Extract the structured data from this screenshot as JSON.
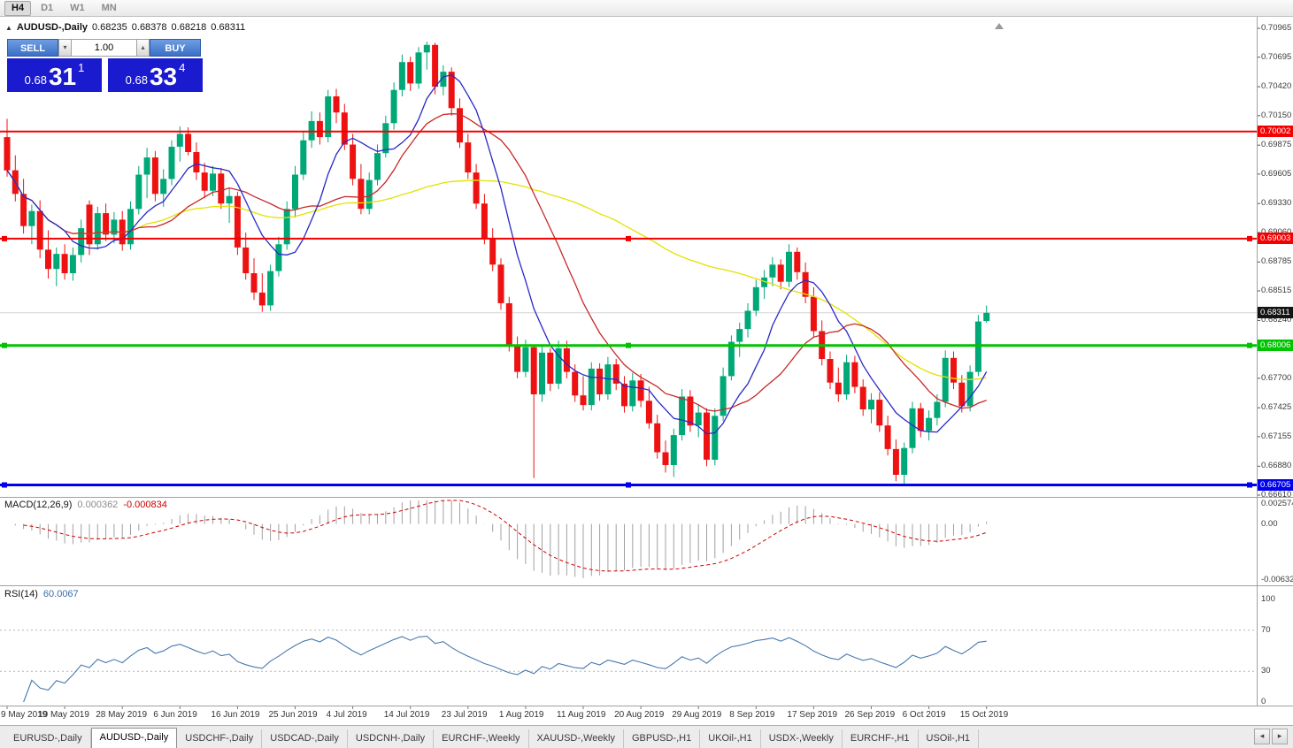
{
  "toolbar": {
    "timeframes": [
      {
        "label": "H4",
        "active": true
      },
      {
        "label": "D1",
        "active": false
      },
      {
        "label": "W1",
        "active": false
      },
      {
        "label": "MN",
        "active": false
      }
    ]
  },
  "chart_header": {
    "symbol": "AUDUSD-,Daily",
    "open": "0.68235",
    "high": "0.68378",
    "low": "0.68218",
    "close": "0.68311"
  },
  "trade_panel": {
    "sell_label": "SELL",
    "buy_label": "BUY",
    "lot": "1.00",
    "sell_price": {
      "prefix": "0.68",
      "pips": "31",
      "point": "1"
    },
    "buy_price": {
      "prefix": "0.68",
      "pips": "33",
      "point": "4"
    },
    "button_color": "#3a6fc6",
    "price_box_color": "#1a1ace"
  },
  "price_axis": [
    "0.70965",
    "0.70695",
    "0.70420",
    "0.70150",
    "0.69875",
    "0.69605",
    "0.69330",
    "0.69060",
    "0.68785",
    "0.68515",
    "0.68240",
    "0.67970",
    "0.67700",
    "0.67425",
    "0.67155",
    "0.66880",
    "0.66610"
  ],
  "lines": [
    {
      "price": 0.70002,
      "label": "0.70002",
      "color": "#f50000",
      "width": 2,
      "handles": false
    },
    {
      "price": 0.69003,
      "label": "0.69003",
      "color": "#f50000",
      "width": 2,
      "handles": true
    },
    {
      "price": 0.68006,
      "label": "0.68006",
      "color": "#00c400",
      "width": 3,
      "handles": true
    },
    {
      "price": 0.66705,
      "label": "0.66705",
      "color": "#0000f0",
      "width": 3,
      "handles": true
    }
  ],
  "current_price": {
    "value": 0.68311,
    "label": "0.68311"
  },
  "macd_panel": {
    "name": "MACD(12,26,9)",
    "value_main": "0.000362",
    "value_signal": "-0.000834",
    "axis": [
      "0.002574",
      "0.00",
      "-0.006326"
    ],
    "max": 0.002574,
    "min": -0.006326,
    "params": {
      "fast": 12,
      "slow": 26,
      "signal": 9
    }
  },
  "rsi_panel": {
    "name": "RSI(14)",
    "value": "60.0067",
    "period": 14,
    "axis": [
      "100",
      "70",
      "30",
      "0"
    ],
    "levels": [
      70,
      30
    ]
  },
  "colors": {
    "up": "#00a878",
    "down": "#ee1111",
    "ma_fast": "#2828c8",
    "ma_mid": "#c82828",
    "ma_slow": "#e2e200",
    "macd_hist": "#a0a0a0",
    "macd_signal": "#cc0000",
    "rsi_line": "#4779af",
    "grid": "#d4d4d4",
    "current_tag": "#141414"
  },
  "tabs": [
    {
      "label": "EURUSD-,Daily",
      "active": false
    },
    {
      "label": "AUDUSD-,Daily",
      "active": true
    },
    {
      "label": "USDCHF-,Daily",
      "active": false
    },
    {
      "label": "USDCAD-,Daily",
      "active": false
    },
    {
      "label": "USDCNH-,Daily",
      "active": false
    },
    {
      "label": "EURCHF-,Weekly",
      "active": false
    },
    {
      "label": "XAUUSD-,Weekly",
      "active": false
    },
    {
      "label": "GBPUSD-,H1",
      "active": false
    },
    {
      "label": "UKOil-,H1",
      "active": false
    },
    {
      "label": "USDX-,Weekly",
      "active": false
    },
    {
      "label": "EURCHF-,H1",
      "active": false
    },
    {
      "label": "USOil-,H1",
      "active": false
    }
  ],
  "chart_data": {
    "type": "candlestick",
    "title": "AUDUSD-,Daily",
    "symbol": "AUDUSD",
    "timeframe": "Daily",
    "price_range": {
      "top": 0.70965,
      "bottom": 0.6661
    },
    "label_every": 7,
    "x_labels": [
      "9 May 2019",
      "19 May 2019",
      "28 May 2019",
      "6 Jun 2019",
      "16 Jun 2019",
      "25 Jun 2019",
      "4 Jul 2019",
      "14 Jul 2019",
      "23 Jul 2019",
      "1 Aug 2019",
      "11 Aug 2019",
      "20 Aug 2019",
      "29 Aug 2019",
      "8 Sep 2019",
      "17 Sep 2019",
      "26 Sep 2019",
      "6 Oct 2019",
      "15 Oct 2019"
    ],
    "overlays": [
      {
        "name": "sma-slow",
        "period": 55,
        "color": "#e2e200"
      },
      {
        "name": "sma-mid",
        "period": 17,
        "color": "#c82828"
      },
      {
        "name": "sma-fast",
        "period": 8,
        "color": "#2828c8"
      }
    ],
    "candles": [
      [
        0.6995,
        0.7012,
        0.6958,
        0.6964
      ],
      [
        0.6964,
        0.6978,
        0.6935,
        0.6942
      ],
      [
        0.6942,
        0.6956,
        0.6905,
        0.6912
      ],
      [
        0.6912,
        0.6932,
        0.6895,
        0.6926
      ],
      [
        0.6926,
        0.6936,
        0.6882,
        0.689
      ],
      [
        0.689,
        0.6908,
        0.6863,
        0.6872
      ],
      [
        0.6872,
        0.6892,
        0.6856,
        0.6886
      ],
      [
        0.6886,
        0.6895,
        0.6862,
        0.6868
      ],
      [
        0.6868,
        0.6892,
        0.6861,
        0.6885
      ],
      [
        0.6885,
        0.6918,
        0.6878,
        0.691
      ],
      [
        0.6932,
        0.6936,
        0.6885,
        0.6895
      ],
      [
        0.6895,
        0.693,
        0.689,
        0.6924
      ],
      [
        0.6924,
        0.6933,
        0.6898,
        0.6904
      ],
      [
        0.6904,
        0.6925,
        0.6896,
        0.6918
      ],
      [
        0.6918,
        0.6926,
        0.6889,
        0.6895
      ],
      [
        0.6895,
        0.6935,
        0.689,
        0.6928
      ],
      [
        0.6928,
        0.6968,
        0.6923,
        0.696
      ],
      [
        0.696,
        0.6985,
        0.6938,
        0.6976
      ],
      [
        0.6976,
        0.6982,
        0.6935,
        0.6942
      ],
      [
        0.6942,
        0.6965,
        0.693,
        0.6956
      ],
      [
        0.6956,
        0.6992,
        0.695,
        0.6986
      ],
      [
        0.6986,
        0.7005,
        0.6972,
        0.6998
      ],
      [
        0.6998,
        0.7004,
        0.6978,
        0.6981
      ],
      [
        0.6981,
        0.699,
        0.6955,
        0.6962
      ],
      [
        0.6962,
        0.6971,
        0.6938,
        0.6945
      ],
      [
        0.6945,
        0.6968,
        0.694,
        0.6961
      ],
      [
        0.6961,
        0.6966,
        0.6928,
        0.6933
      ],
      [
        0.6933,
        0.6948,
        0.6915,
        0.694
      ],
      [
        0.694,
        0.6944,
        0.6885,
        0.6892
      ],
      [
        0.6892,
        0.6906,
        0.6862,
        0.6868
      ],
      [
        0.6868,
        0.6882,
        0.6843,
        0.685
      ],
      [
        0.685,
        0.6868,
        0.6832,
        0.6838
      ],
      [
        0.6838,
        0.6876,
        0.6833,
        0.687
      ],
      [
        0.687,
        0.6902,
        0.6865,
        0.6895
      ],
      [
        0.6895,
        0.6935,
        0.689,
        0.6928
      ],
      [
        0.6928,
        0.6968,
        0.692,
        0.696
      ],
      [
        0.696,
        0.7,
        0.6955,
        0.6992
      ],
      [
        0.6992,
        0.7019,
        0.6985,
        0.701
      ],
      [
        0.701,
        0.7018,
        0.6988,
        0.6995
      ],
      [
        0.6995,
        0.7039,
        0.699,
        0.7033
      ],
      [
        0.7033,
        0.704,
        0.7008,
        0.7018
      ],
      [
        0.7018,
        0.7026,
        0.6983,
        0.6988
      ],
      [
        0.6988,
        0.6998,
        0.695,
        0.6956
      ],
      [
        0.6956,
        0.697,
        0.6923,
        0.6928
      ],
      [
        0.6928,
        0.6962,
        0.6923,
        0.6955
      ],
      [
        0.6955,
        0.6988,
        0.695,
        0.698
      ],
      [
        0.698,
        0.7015,
        0.6976,
        0.7008
      ],
      [
        0.7008,
        0.7046,
        0.7002,
        0.7039
      ],
      [
        0.7039,
        0.7072,
        0.7033,
        0.7065
      ],
      [
        0.7065,
        0.707,
        0.7038,
        0.7045
      ],
      [
        0.7045,
        0.7079,
        0.704,
        0.7074
      ],
      [
        0.7074,
        0.7084,
        0.7058,
        0.7081
      ],
      [
        0.7081,
        0.7083,
        0.7035,
        0.7042
      ],
      [
        0.7042,
        0.7062,
        0.7034,
        0.7056
      ],
      [
        0.7056,
        0.706,
        0.7015,
        0.7022
      ],
      [
        0.7022,
        0.7031,
        0.6985,
        0.699
      ],
      [
        0.699,
        0.6998,
        0.6956,
        0.6962
      ],
      [
        0.6962,
        0.697,
        0.6928,
        0.6933
      ],
      [
        0.6933,
        0.6942,
        0.6895,
        0.69
      ],
      [
        0.69,
        0.691,
        0.687,
        0.6876
      ],
      [
        0.6876,
        0.6882,
        0.6834,
        0.684
      ],
      [
        0.684,
        0.6846,
        0.6795,
        0.6801
      ],
      [
        0.6801,
        0.6809,
        0.677,
        0.6776
      ],
      [
        0.6776,
        0.6806,
        0.6771,
        0.6799
      ],
      [
        0.6799,
        0.6801,
        0.6677,
        0.6755
      ],
      [
        0.6755,
        0.68,
        0.6748,
        0.6794
      ],
      [
        0.6794,
        0.6798,
        0.6758,
        0.6765
      ],
      [
        0.6765,
        0.6805,
        0.676,
        0.6798
      ],
      [
        0.6798,
        0.6805,
        0.677,
        0.6776
      ],
      [
        0.6776,
        0.6783,
        0.6748,
        0.6754
      ],
      [
        0.6754,
        0.6772,
        0.674,
        0.6745
      ],
      [
        0.6745,
        0.6785,
        0.674,
        0.6779
      ],
      [
        0.6779,
        0.6784,
        0.6749,
        0.6755
      ],
      [
        0.6755,
        0.679,
        0.675,
        0.6783
      ],
      [
        0.6783,
        0.6788,
        0.6759,
        0.6765
      ],
      [
        0.6765,
        0.6772,
        0.6738,
        0.6744
      ],
      [
        0.6744,
        0.6775,
        0.6739,
        0.6768
      ],
      [
        0.6768,
        0.6774,
        0.6743,
        0.6749
      ],
      [
        0.6749,
        0.6762,
        0.6723,
        0.6728
      ],
      [
        0.6728,
        0.6736,
        0.6695,
        0.6701
      ],
      [
        0.6701,
        0.6712,
        0.6682,
        0.6689
      ],
      [
        0.6689,
        0.6723,
        0.6678,
        0.6717
      ],
      [
        0.6717,
        0.676,
        0.6712,
        0.6753
      ],
      [
        0.6753,
        0.6759,
        0.672,
        0.6726
      ],
      [
        0.6726,
        0.6745,
        0.6715,
        0.6738
      ],
      [
        0.6738,
        0.6742,
        0.6688,
        0.6694
      ],
      [
        0.6694,
        0.6742,
        0.6689,
        0.6735
      ],
      [
        0.6735,
        0.678,
        0.673,
        0.6772
      ],
      [
        0.6772,
        0.681,
        0.6768,
        0.6804
      ],
      [
        0.6804,
        0.6822,
        0.679,
        0.6816
      ],
      [
        0.6816,
        0.684,
        0.6808,
        0.6833
      ],
      [
        0.6833,
        0.6862,
        0.6828,
        0.6855
      ],
      [
        0.6855,
        0.6871,
        0.6844,
        0.6864
      ],
      [
        0.6864,
        0.6883,
        0.6856,
        0.6876
      ],
      [
        0.6876,
        0.6881,
        0.6853,
        0.686
      ],
      [
        0.686,
        0.6895,
        0.6855,
        0.6888
      ],
      [
        0.6888,
        0.6892,
        0.6862,
        0.6869
      ],
      [
        0.6869,
        0.6878,
        0.684,
        0.6846
      ],
      [
        0.6846,
        0.6855,
        0.6808,
        0.6814
      ],
      [
        0.6814,
        0.6824,
        0.6782,
        0.6788
      ],
      [
        0.6788,
        0.6795,
        0.676,
        0.6766
      ],
      [
        0.6766,
        0.678,
        0.6748,
        0.6755
      ],
      [
        0.6755,
        0.6792,
        0.675,
        0.6785
      ],
      [
        0.6785,
        0.6791,
        0.6756,
        0.6762
      ],
      [
        0.6762,
        0.6769,
        0.6735,
        0.6741
      ],
      [
        0.6741,
        0.6756,
        0.6728,
        0.675
      ],
      [
        0.675,
        0.6757,
        0.672,
        0.6726
      ],
      [
        0.6726,
        0.6735,
        0.6698,
        0.6704
      ],
      [
        0.6704,
        0.6713,
        0.6674,
        0.668
      ],
      [
        0.668,
        0.671,
        0.66705,
        0.6705
      ],
      [
        0.6705,
        0.6748,
        0.67,
        0.6742
      ],
      [
        0.6742,
        0.6747,
        0.6715,
        0.6721
      ],
      [
        0.6721,
        0.674,
        0.6712,
        0.6733
      ],
      [
        0.6733,
        0.6755,
        0.6726,
        0.6748
      ],
      [
        0.6748,
        0.6796,
        0.6743,
        0.6789
      ],
      [
        0.6789,
        0.6795,
        0.676,
        0.6766
      ],
      [
        0.6766,
        0.6773,
        0.6738,
        0.6744
      ],
      [
        0.6744,
        0.6782,
        0.6739,
        0.6776
      ],
      [
        0.6776,
        0.6829,
        0.6772,
        0.6823
      ],
      [
        0.68235,
        0.68378,
        0.68218,
        0.68311
      ]
    ]
  }
}
